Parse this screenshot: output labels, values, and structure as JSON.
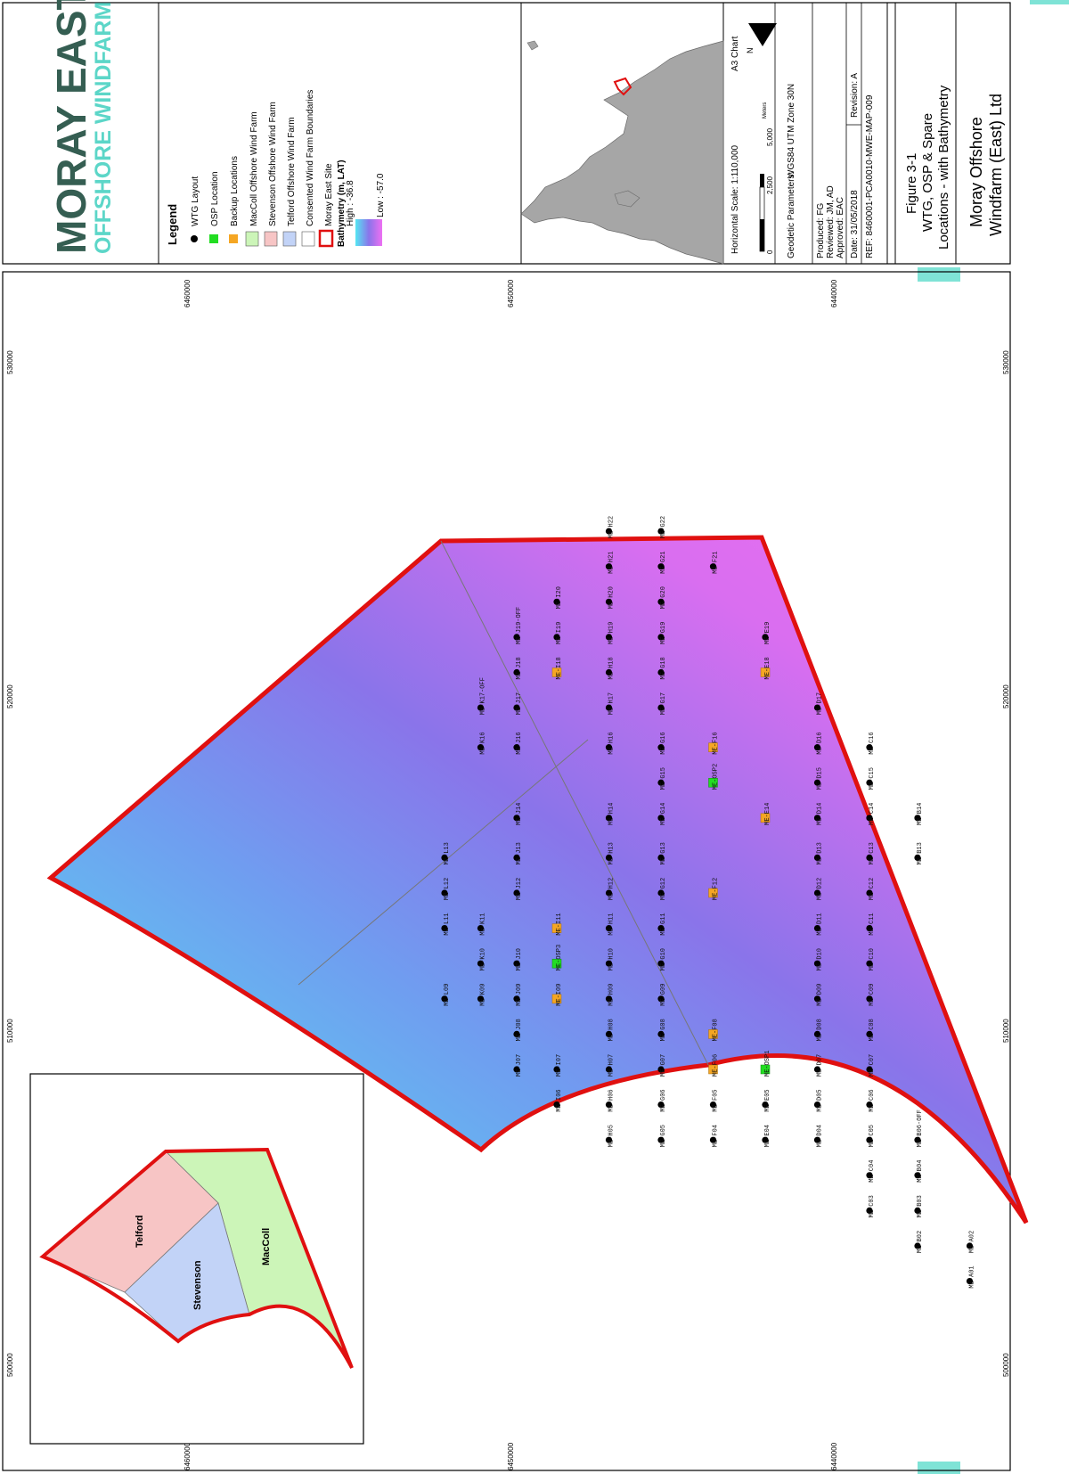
{
  "branding": {
    "logo_line1": "MORAY EAST",
    "logo_line2": "OFFSHORE WINDFARM",
    "colors": {
      "logo_dark": "#355e52",
      "logo_teal": "#5cd6c8"
    }
  },
  "legend": {
    "title": "Legend",
    "items": [
      {
        "label": "WTG Layout",
        "symbol": "black-dot"
      },
      {
        "label": "OSP Location",
        "symbol": "green-square"
      },
      {
        "label": "Backup Locations",
        "symbol": "orange-square"
      },
      {
        "label": "MacColl Offshore Wind Farm",
        "symbol": "green-box"
      },
      {
        "label": "Stevenson Offshore Wind Farm",
        "symbol": "pink-box"
      },
      {
        "label": "Telford Offshore Wind Farm",
        "symbol": "blue-box"
      },
      {
        "label": "Consented Wind Farm Boundaries",
        "symbol": "white-box"
      },
      {
        "label": "Moray East Site",
        "symbol": "red-outline-box"
      }
    ],
    "bathymetry_title": "Bathymetry (m, LAT)",
    "bathymetry_high": "High : -36.8",
    "bathymetry_low": "Low : -57.0",
    "colors": {
      "wtg": "#000000",
      "osp": "#22dd22",
      "backup": "#f5a623",
      "maccoll": "#ccf5b8",
      "stevenson": "#f7c5c5",
      "telford": "#c2d3f7",
      "site": "#e01010"
    }
  },
  "info": {
    "scale": "Horizontal Scale: 1:110,000",
    "chart": "A3 Chart",
    "north": "N",
    "scalebar": [
      "0",
      "2,500",
      "5,000"
    ],
    "scalebar_unit": "Meters",
    "geodetic_label": "Geodetic Parameters:",
    "geodetic_value": "WGS84 UTM Zone 30N",
    "produced": "Produced: FG",
    "reviewed": "Reviewed: JM, AD",
    "approved": "Approved: EAC",
    "date": "Date: 31/05/2018",
    "revision": "Revision: A",
    "ref": "REF: 8460001-PCA0010-MWE-MAP-009"
  },
  "title_block": {
    "fig_line1": "Figure 3-1",
    "fig_line2": "WTG, OSP & Spare",
    "fig_line3": "Locations - with Bathymetry",
    "company_line1": "Moray Offshore",
    "company_line2": "Windfarm (East) Ltd"
  },
  "inset": {
    "labels": [
      "Telford",
      "Stevenson",
      "MacColl"
    ]
  },
  "map": {
    "x_ticks": [
      "530000",
      "520000",
      "510000",
      "500000"
    ],
    "y_ticks": [
      "6460000",
      "6450000",
      "6440000"
    ],
    "turbines": [
      {
        "id": "ME-L13",
        "u": 0.51,
        "v": 0.26
      },
      {
        "id": "ME-L12",
        "u": 0.51,
        "v": 0.3
      },
      {
        "id": "ME-L11",
        "u": 0.51,
        "v": 0.34
      },
      {
        "id": "ME-L09",
        "u": 0.51,
        "v": 0.42
      },
      {
        "id": "ME-K17-OFF",
        "u": 0.555,
        "v": 0.09
      },
      {
        "id": "ME-K16",
        "u": 0.555,
        "v": 0.135
      },
      {
        "id": "ME-K11",
        "u": 0.555,
        "v": 0.34
      },
      {
        "id": "ME-K10",
        "u": 0.555,
        "v": 0.38
      },
      {
        "id": "ME-K09",
        "u": 0.555,
        "v": 0.42
      },
      {
        "id": "ME-J19-OFF",
        "u": 0.6,
        "v": 0.01
      },
      {
        "id": "ME-J18",
        "u": 0.6,
        "v": 0.05
      },
      {
        "id": "ME-J17",
        "u": 0.6,
        "v": 0.09
      },
      {
        "id": "ME-J16",
        "u": 0.6,
        "v": 0.135
      },
      {
        "id": "ME-J14",
        "u": 0.6,
        "v": 0.215
      },
      {
        "id": "ME-J13",
        "u": 0.6,
        "v": 0.26
      },
      {
        "id": "ME-J12",
        "u": 0.6,
        "v": 0.3
      },
      {
        "id": "ME-J10",
        "u": 0.6,
        "v": 0.38
      },
      {
        "id": "ME-J09",
        "u": 0.6,
        "v": 0.42
      },
      {
        "id": "ME-J08",
        "u": 0.6,
        "v": 0.46
      },
      {
        "id": "ME-J07",
        "u": 0.6,
        "v": 0.5
      },
      {
        "id": "ME-I20",
        "u": 0.65,
        "v": -0.03
      },
      {
        "id": "ME-I19",
        "u": 0.65,
        "v": 0.01
      },
      {
        "id": "ME-I07",
        "u": 0.65,
        "v": 0.5
      },
      {
        "id": "ME-I06",
        "u": 0.65,
        "v": 0.54
      },
      {
        "id": "ME-H22",
        "u": 0.715,
        "v": -0.11
      },
      {
        "id": "ME-H21",
        "u": 0.715,
        "v": -0.07
      },
      {
        "id": "ME-H20",
        "u": 0.715,
        "v": -0.03
      },
      {
        "id": "ME-H19",
        "u": 0.715,
        "v": 0.01
      },
      {
        "id": "ME-H18",
        "u": 0.715,
        "v": 0.05
      },
      {
        "id": "ME-H17",
        "u": 0.715,
        "v": 0.09
      },
      {
        "id": "ME-H16",
        "u": 0.715,
        "v": 0.135
      },
      {
        "id": "ME-H14",
        "u": 0.715,
        "v": 0.215
      },
      {
        "id": "ME-H13",
        "u": 0.715,
        "v": 0.26
      },
      {
        "id": "ME-H12",
        "u": 0.715,
        "v": 0.3
      },
      {
        "id": "ME-H11",
        "u": 0.715,
        "v": 0.34
      },
      {
        "id": "ME-H10",
        "u": 0.715,
        "v": 0.38
      },
      {
        "id": "ME-H09",
        "u": 0.715,
        "v": 0.42
      },
      {
        "id": "ME-H08",
        "u": 0.715,
        "v": 0.46
      },
      {
        "id": "ME-H07",
        "u": 0.715,
        "v": 0.5
      },
      {
        "id": "ME-H06",
        "u": 0.715,
        "v": 0.54
      },
      {
        "id": "ME-H05",
        "u": 0.715,
        "v": 0.58
      },
      {
        "id": "ME-G22",
        "u": 0.78,
        "v": -0.11
      },
      {
        "id": "ME-G21",
        "u": 0.78,
        "v": -0.07
      },
      {
        "id": "ME-G20",
        "u": 0.78,
        "v": -0.03
      },
      {
        "id": "ME-G19",
        "u": 0.78,
        "v": 0.01
      },
      {
        "id": "ME-G18",
        "u": 0.78,
        "v": 0.05
      },
      {
        "id": "ME-G17",
        "u": 0.78,
        "v": 0.09
      },
      {
        "id": "ME-G16",
        "u": 0.78,
        "v": 0.135
      },
      {
        "id": "ME-G15",
        "u": 0.78,
        "v": 0.175
      },
      {
        "id": "ME-G14",
        "u": 0.78,
        "v": 0.215
      },
      {
        "id": "ME-G13",
        "u": 0.78,
        "v": 0.26
      },
      {
        "id": "ME-G12",
        "u": 0.78,
        "v": 0.3
      },
      {
        "id": "ME-G11",
        "u": 0.78,
        "v": 0.34
      },
      {
        "id": "ME-G10",
        "u": 0.78,
        "v": 0.38
      },
      {
        "id": "ME-G09",
        "u": 0.78,
        "v": 0.42
      },
      {
        "id": "ME-G08",
        "u": 0.78,
        "v": 0.46
      },
      {
        "id": "ME-G07",
        "u": 0.78,
        "v": 0.5
      },
      {
        "id": "ME-G06",
        "u": 0.78,
        "v": 0.54
      },
      {
        "id": "ME-G05",
        "u": 0.78,
        "v": 0.58
      },
      {
        "id": "ME-F21",
        "u": 0.845,
        "v": -0.07
      },
      {
        "id": "ME-F05",
        "u": 0.845,
        "v": 0.54
      },
      {
        "id": "ME-F04",
        "u": 0.845,
        "v": 0.58
      },
      {
        "id": "ME-E19",
        "u": 0.91,
        "v": 0.01
      },
      {
        "id": "ME-E05",
        "u": 0.91,
        "v": 0.54
      },
      {
        "id": "ME-E04",
        "u": 0.91,
        "v": 0.58
      },
      {
        "id": "ME-D17",
        "u": 0.975,
        "v": 0.09
      },
      {
        "id": "ME-D16",
        "u": 0.975,
        "v": 0.135
      },
      {
        "id": "ME-D15",
        "u": 0.975,
        "v": 0.175
      },
      {
        "id": "ME-D14",
        "u": 0.975,
        "v": 0.215
      },
      {
        "id": "ME-D13",
        "u": 0.975,
        "v": 0.26
      },
      {
        "id": "ME-D12",
        "u": 0.975,
        "v": 0.3
      },
      {
        "id": "ME-D11",
        "u": 0.975,
        "v": 0.34
      },
      {
        "id": "ME-D10",
        "u": 0.975,
        "v": 0.38
      },
      {
        "id": "ME-D09",
        "u": 0.975,
        "v": 0.42
      },
      {
        "id": "ME-D08",
        "u": 0.975,
        "v": 0.46
      },
      {
        "id": "ME-D07",
        "u": 0.975,
        "v": 0.5
      },
      {
        "id": "ME-D05",
        "u": 0.975,
        "v": 0.54
      },
      {
        "id": "ME-D04",
        "u": 0.975,
        "v": 0.58
      },
      {
        "id": "ME-C16",
        "u": 1.04,
        "v": 0.135
      },
      {
        "id": "ME-C15",
        "u": 1.04,
        "v": 0.175
      },
      {
        "id": "ME-C14",
        "u": 1.04,
        "v": 0.215
      },
      {
        "id": "ME-C13",
        "u": 1.04,
        "v": 0.26
      },
      {
        "id": "ME-C12",
        "u": 1.04,
        "v": 0.3
      },
      {
        "id": "ME-C11",
        "u": 1.04,
        "v": 0.34
      },
      {
        "id": "ME-C10",
        "u": 1.04,
        "v": 0.38
      },
      {
        "id": "ME-C09",
        "u": 1.04,
        "v": 0.42
      },
      {
        "id": "ME-C08",
        "u": 1.04,
        "v": 0.46
      },
      {
        "id": "ME-C07",
        "u": 1.04,
        "v": 0.5
      },
      {
        "id": "ME-C06",
        "u": 1.04,
        "v": 0.54
      },
      {
        "id": "ME-C05",
        "u": 1.04,
        "v": 0.58
      },
      {
        "id": "ME-C04",
        "u": 1.04,
        "v": 0.62
      },
      {
        "id": "ME-C03",
        "u": 1.04,
        "v": 0.66
      },
      {
        "id": "ME-B14",
        "u": 1.1,
        "v": 0.215
      },
      {
        "id": "ME-B13",
        "u": 1.1,
        "v": 0.26
      },
      {
        "id": "ME-B06-OFF",
        "u": 1.1,
        "v": 0.58
      },
      {
        "id": "ME-B04",
        "u": 1.1,
        "v": 0.62
      },
      {
        "id": "ME-B03",
        "u": 1.1,
        "v": 0.66
      },
      {
        "id": "ME-B02",
        "u": 1.1,
        "v": 0.7
      },
      {
        "id": "ME-A02",
        "u": 1.165,
        "v": 0.7
      },
      {
        "id": "ME-A01",
        "u": 1.165,
        "v": 0.74
      }
    ],
    "osps": [
      {
        "id": "ME-OSP3",
        "u": 0.65,
        "v": 0.38
      },
      {
        "id": "ME-OSP2",
        "u": 0.845,
        "v": 0.175
      },
      {
        "id": "ME-OSP1",
        "u": 0.91,
        "v": 0.5
      }
    ],
    "backups": [
      {
        "id": "ME-I18",
        "u": 0.65,
        "v": 0.05
      },
      {
        "id": "ME-I11",
        "u": 0.65,
        "v": 0.34
      },
      {
        "id": "ME-I09",
        "u": 0.65,
        "v": 0.42
      },
      {
        "id": "ME-F16",
        "u": 0.845,
        "v": 0.135
      },
      {
        "id": "ME-F12",
        "u": 0.845,
        "v": 0.3
      },
      {
        "id": "ME-F08",
        "u": 0.845,
        "v": 0.46
      },
      {
        "id": "ME-F06",
        "u": 0.845,
        "v": 0.5
      },
      {
        "id": "ME-E18",
        "u": 0.91,
        "v": 0.05
      },
      {
        "id": "ME-E14",
        "u": 0.91,
        "v": 0.215
      }
    ]
  }
}
